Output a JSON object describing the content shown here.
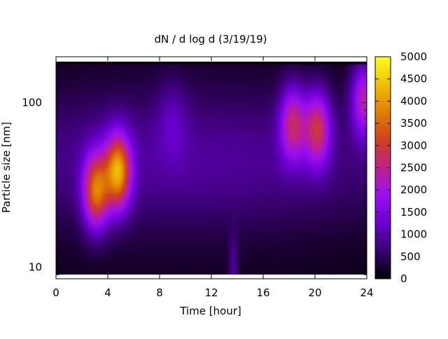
{
  "chart_data": {
    "type": "heatmap",
    "title": "dN / d log d (3/19/19)",
    "xlabel": "Time [hour]",
    "ylabel": "Particle size [nm]",
    "xlim": [
      0,
      24
    ],
    "ylim_nm": [
      8.5,
      190
    ],
    "y_scale": "log",
    "x_ticks": [
      0,
      4,
      8,
      12,
      16,
      20,
      24
    ],
    "y_ticks": [
      10,
      100
    ],
    "colorbar": {
      "range": [
        0,
        5000
      ],
      "ticks": [
        0,
        500,
        1000,
        1500,
        2000,
        2500,
        3000,
        3500,
        4000,
        4500,
        5000
      ],
      "colormap": "gnuplot",
      "colors": [
        "#000000",
        "#3a0070",
        "#6a00d0",
        "#9a10f0",
        "#c02090",
        "#d04020",
        "#e08000",
        "#f0c000",
        "#ffff20"
      ]
    },
    "background_level": 700,
    "features": [
      {
        "hour": 3.1,
        "size_nm": 29,
        "peak": 3700
      },
      {
        "hour": 4.8,
        "size_nm": 38,
        "peak": 4100
      },
      {
        "hour": 18.3,
        "size_nm": 75,
        "peak": 2800
      },
      {
        "hour": 20.2,
        "size_nm": 70,
        "peak": 3000
      },
      {
        "hour": 23.8,
        "size_nm": 105,
        "peak": 2700
      },
      {
        "hour": 13.7,
        "size_nm": 9,
        "peak": 1400
      }
    ]
  }
}
